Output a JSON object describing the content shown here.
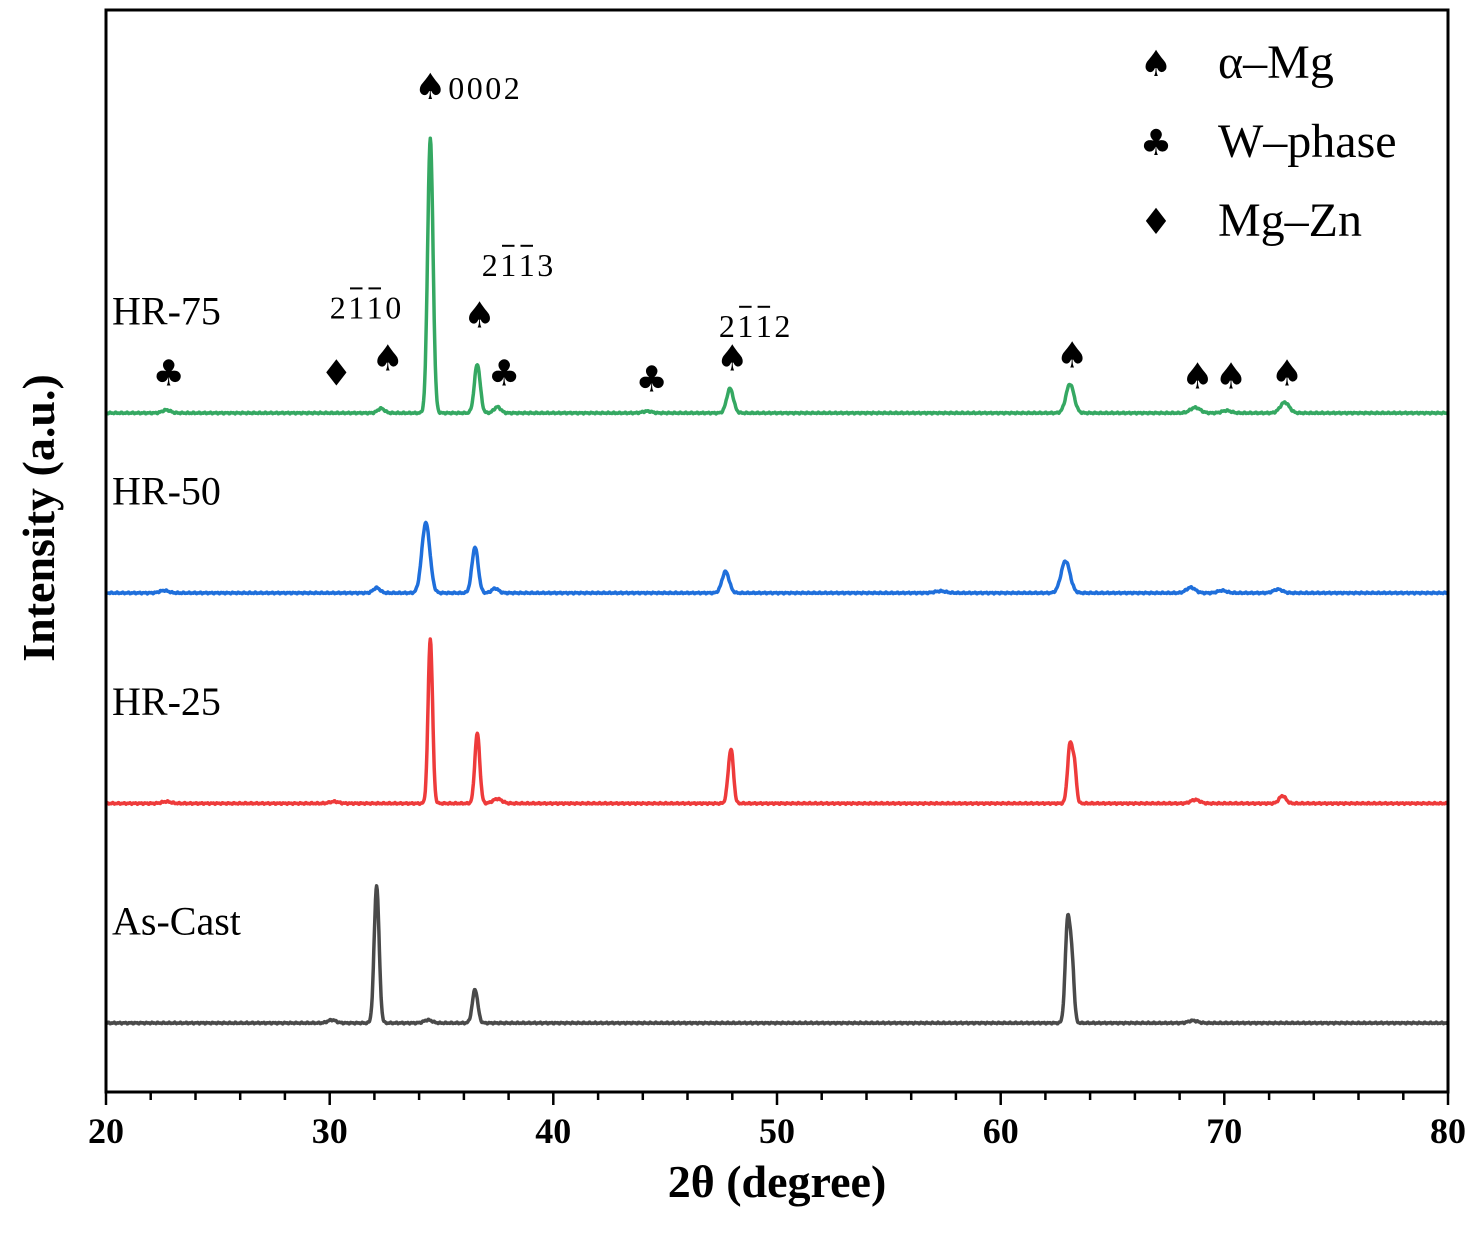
{
  "chart_data": {
    "type": "line",
    "xlabel": "2θ (degree)",
    "ylabel": "Intensity (a.u.)",
    "xlim": [
      20,
      80
    ],
    "x_ticks": [
      "20",
      "30",
      "40",
      "50",
      "60",
      "70",
      "80"
    ],
    "x_tick_values": [
      20,
      30,
      40,
      50,
      60,
      70,
      80
    ],
    "y_ticks_shown": false,
    "colors": {
      "as_cast": "#4a4a4a",
      "hr25": "#ee3b3b",
      "hr50": "#1f6fdb",
      "hr75": "#35a862",
      "axis": "#000000"
    },
    "series": [
      {
        "name": "As-Cast",
        "color": "#4a4a4a",
        "offset": 0,
        "peaks": [
          {
            "x": 30.1,
            "h": 0.01,
            "w": 0.18
          },
          {
            "x": 32.1,
            "h": 0.45,
            "w": 0.11
          },
          {
            "x": 34.4,
            "h": 0.01,
            "w": 0.18
          },
          {
            "x": 36.5,
            "h": 0.11,
            "w": 0.12
          },
          {
            "x": 63.0,
            "h": 0.34,
            "w": 0.11
          },
          {
            "x": 63.2,
            "h": 0.17,
            "w": 0.09
          },
          {
            "x": 68.6,
            "h": 0.008,
            "w": 0.2
          }
        ]
      },
      {
        "name": "HR-25",
        "color": "#ee3b3b",
        "offset": 0.72,
        "peaks": [
          {
            "x": 22.7,
            "h": 0.006,
            "w": 0.2
          },
          {
            "x": 30.2,
            "h": 0.006,
            "w": 0.2
          },
          {
            "x": 34.5,
            "h": 0.54,
            "w": 0.1
          },
          {
            "x": 36.6,
            "h": 0.23,
            "w": 0.11
          },
          {
            "x": 37.5,
            "h": 0.015,
            "w": 0.2
          },
          {
            "x": 47.9,
            "h": 0.13,
            "w": 0.11
          },
          {
            "x": 48.0,
            "h": 0.07,
            "w": 0.09
          },
          {
            "x": 63.1,
            "h": 0.19,
            "w": 0.11
          },
          {
            "x": 63.3,
            "h": 0.11,
            "w": 0.09
          },
          {
            "x": 68.7,
            "h": 0.012,
            "w": 0.2
          },
          {
            "x": 72.6,
            "h": 0.025,
            "w": 0.15
          }
        ]
      },
      {
        "name": "HR-50",
        "color": "#1f6fdb",
        "offset": 1.41,
        "peaks": [
          {
            "x": 22.6,
            "h": 0.008,
            "w": 0.2
          },
          {
            "x": 32.1,
            "h": 0.017,
            "w": 0.15
          },
          {
            "x": 34.3,
            "h": 0.23,
            "w": 0.18
          },
          {
            "x": 36.5,
            "h": 0.15,
            "w": 0.14
          },
          {
            "x": 37.4,
            "h": 0.015,
            "w": 0.15
          },
          {
            "x": 47.7,
            "h": 0.07,
            "w": 0.16
          },
          {
            "x": 57.3,
            "h": 0.006,
            "w": 0.25
          },
          {
            "x": 62.9,
            "h": 0.105,
            "w": 0.2
          },
          {
            "x": 68.5,
            "h": 0.018,
            "w": 0.2
          },
          {
            "x": 69.9,
            "h": 0.008,
            "w": 0.2
          },
          {
            "x": 72.4,
            "h": 0.012,
            "w": 0.2
          }
        ]
      },
      {
        "name": "HR-75",
        "color": "#35a862",
        "offset": 2.0,
        "peaks": [
          {
            "x": 22.7,
            "h": 0.01,
            "w": 0.18
          },
          {
            "x": 32.3,
            "h": 0.015,
            "w": 0.15
          },
          {
            "x": 34.5,
            "h": 0.9,
            "w": 0.12
          },
          {
            "x": 36.6,
            "h": 0.16,
            "w": 0.13
          },
          {
            "x": 37.5,
            "h": 0.02,
            "w": 0.15
          },
          {
            "x": 44.2,
            "h": 0.006,
            "w": 0.2
          },
          {
            "x": 47.9,
            "h": 0.08,
            "w": 0.15
          },
          {
            "x": 63.1,
            "h": 0.095,
            "w": 0.18
          },
          {
            "x": 68.7,
            "h": 0.018,
            "w": 0.22
          },
          {
            "x": 70.1,
            "h": 0.008,
            "w": 0.2
          },
          {
            "x": 72.7,
            "h": 0.035,
            "w": 0.2
          }
        ]
      }
    ],
    "legend": {
      "position": "top-right",
      "entries": [
        {
          "symbol": "♠",
          "label": "α–Mg"
        },
        {
          "symbol": "♣",
          "label": "W–phase"
        },
        {
          "symbol": "♦",
          "label": "Mg–Zn"
        }
      ]
    },
    "annotations": {
      "markers": [
        {
          "symbol": "♣",
          "x": 22.8,
          "above": 0.09
        },
        {
          "symbol": "♦",
          "x": 30.3,
          "above": 0.09
        },
        {
          "symbol": "♠",
          "x": 32.6,
          "above": 0.14
        },
        {
          "symbol": "♠",
          "x": 34.5,
          "above": 1.03
        },
        {
          "symbol": "♣",
          "x": 37.8,
          "above": 0.09
        },
        {
          "symbol": "♠",
          "x": 36.7,
          "above": 0.28
        },
        {
          "symbol": "♣",
          "x": 44.4,
          "above": 0.07
        },
        {
          "symbol": "♠",
          "x": 48.0,
          "above": 0.14
        },
        {
          "symbol": "♠",
          "x": 63.2,
          "above": 0.15
        },
        {
          "symbol": "♠",
          "x": 68.8,
          "above": 0.08
        },
        {
          "symbol": "♠",
          "x": 70.3,
          "above": 0.08
        },
        {
          "symbol": "♠",
          "x": 72.8,
          "above": 0.09
        }
      ],
      "miller": [
        {
          "digits": [
            "2",
            "1",
            "1",
            "0"
          ],
          "bars": [
            1,
            2
          ],
          "x": 31.6,
          "above": 0.31
        },
        {
          "digits": [
            "0",
            "0",
            "0",
            "2"
          ],
          "bars": [],
          "x": 36.9,
          "above": 1.03
        },
        {
          "digits": [
            "2",
            "1",
            "1",
            "3"
          ],
          "bars": [
            1,
            2
          ],
          "x": 38.4,
          "above": 0.45
        },
        {
          "digits": [
            "2",
            "1",
            "1",
            "2"
          ],
          "bars": [
            1,
            2
          ],
          "x": 49.0,
          "above": 0.25
        }
      ]
    }
  }
}
